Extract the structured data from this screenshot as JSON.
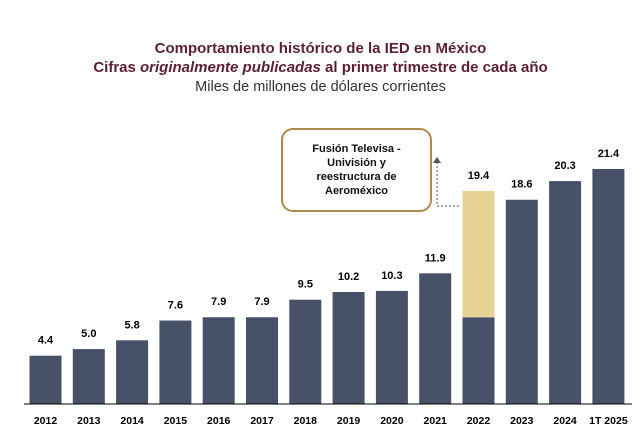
{
  "header": {
    "title_line1": "Comportamiento histórico de la IED en México",
    "title_line2_pre": "Cifras ",
    "title_line2_italic": "originalmente publicadas",
    "title_line2_post": " al primer trimestre de cada año",
    "subtitle": "Miles de millones de dólares corrientes"
  },
  "annotation": {
    "text": "Fusión Televisa -\nUnivisión y\nreestructura de\nAeroméxico"
  },
  "colors": {
    "bar": "#475269",
    "highlight": "#e6d293",
    "title": "#5b1f33",
    "callout_border": "#b0894f"
  },
  "chart_data": {
    "type": "bar",
    "categories": [
      "2012",
      "2013",
      "2014",
      "2015",
      "2016",
      "2017",
      "2018",
      "2019",
      "2020",
      "2021",
      "2022",
      "2023",
      "2024",
      "1T 2025"
    ],
    "values": [
      4.4,
      5.0,
      5.8,
      7.6,
      7.9,
      7.9,
      9.5,
      10.2,
      10.3,
      11.9,
      19.4,
      18.6,
      20.3,
      21.4
    ],
    "labels": [
      "4.4",
      "5.0",
      "5.8",
      "7.6",
      "7.9",
      "7.9",
      "9.5",
      "10.2",
      "10.3",
      "11.9",
      "19.4",
      "18.6",
      "20.3",
      "21.4"
    ],
    "highlight": {
      "category": "2022",
      "base_value": 7.9
    },
    "ylim": [
      0,
      21.4
    ],
    "grid": false,
    "legend": "none",
    "xlabel": "",
    "ylabel": ""
  }
}
